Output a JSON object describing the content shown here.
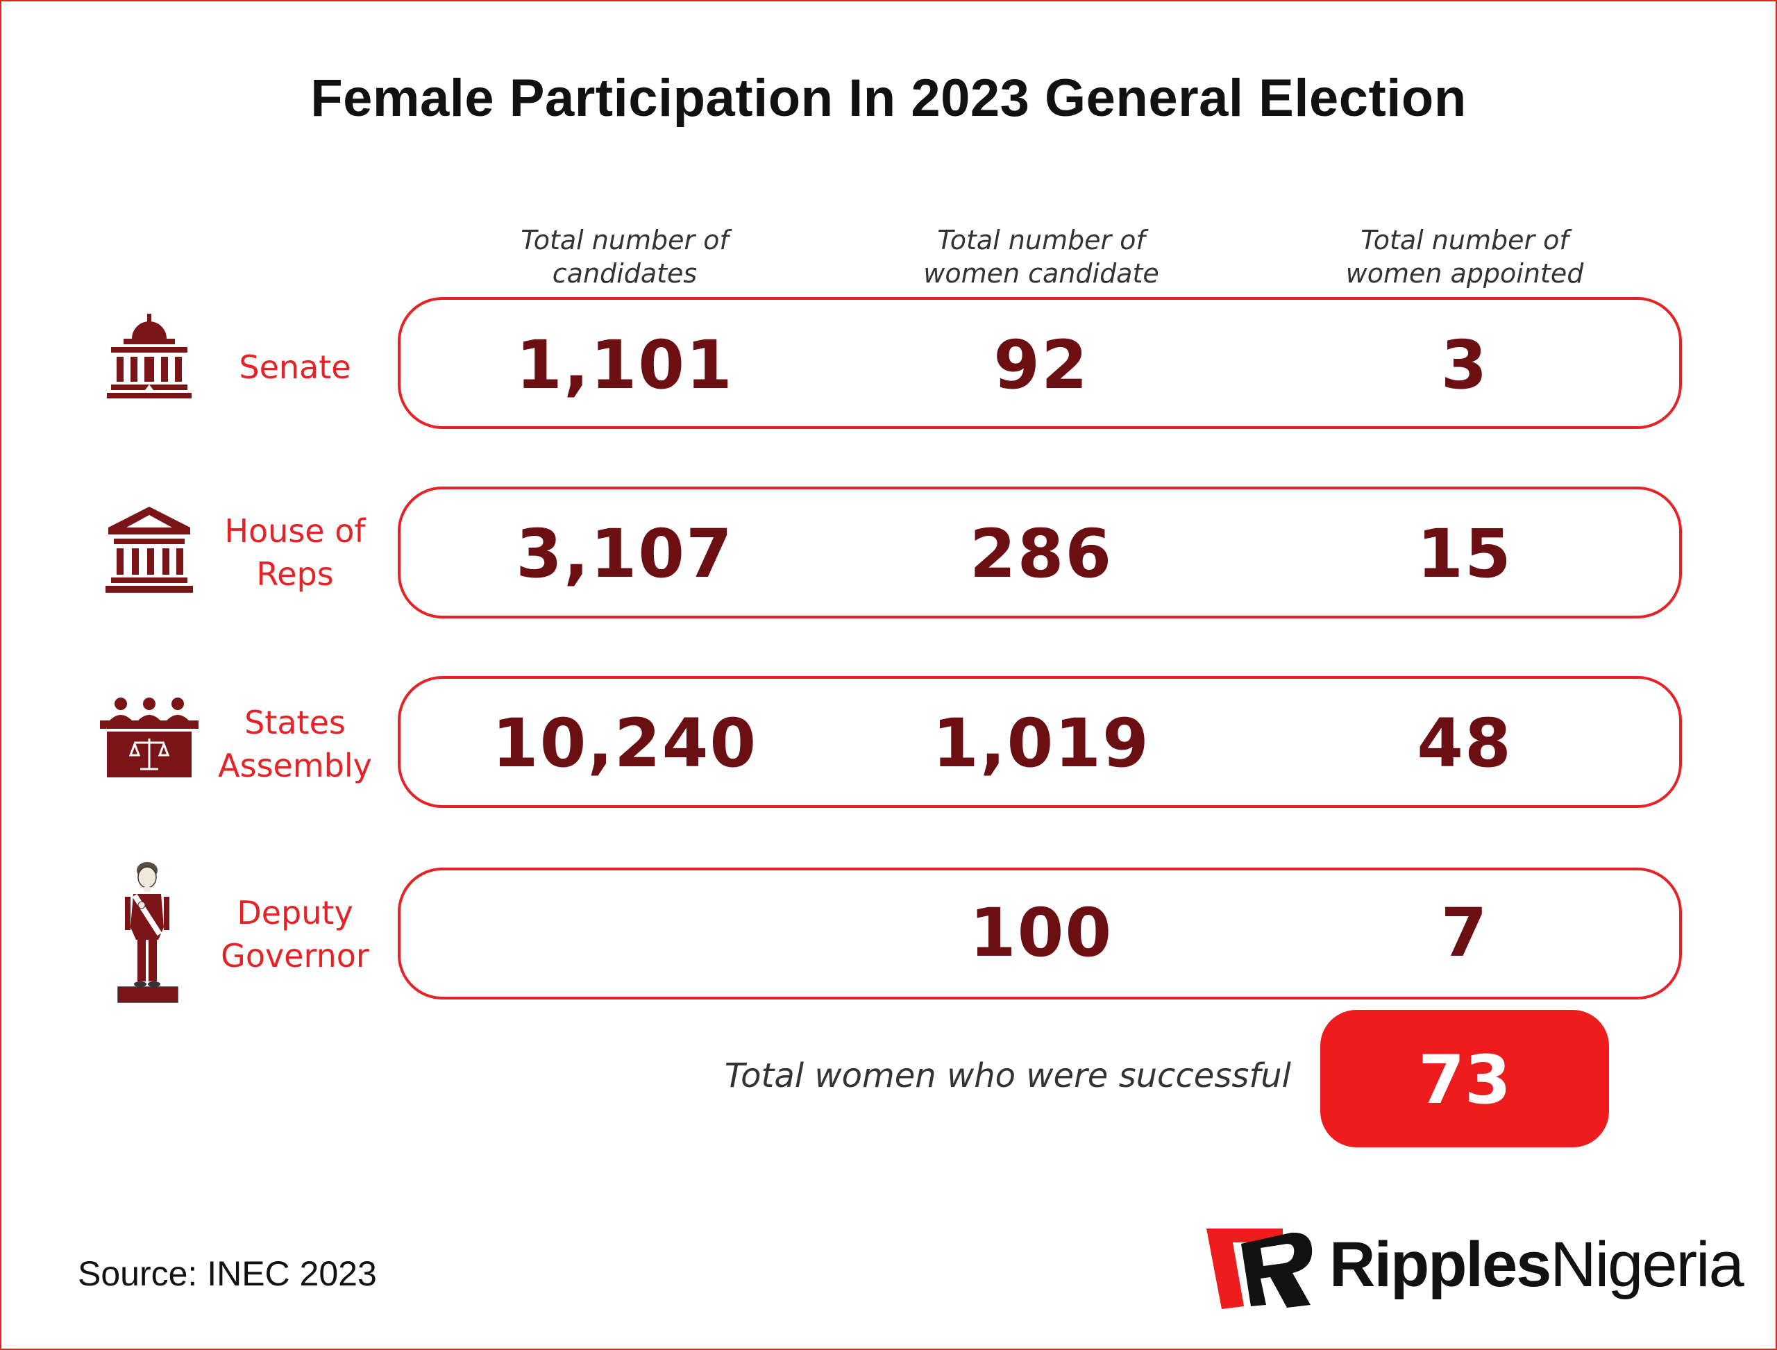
{
  "title": "Female Participation In 2023 General Election",
  "chart_data": {
    "type": "table",
    "columns": [
      {
        "line1": "Total number of",
        "line2": "candidates"
      },
      {
        "line1": "Total number of",
        "line2": "women candidate"
      },
      {
        "line1": "Total number of",
        "line2": "women appointed"
      }
    ],
    "rows": [
      {
        "line1": "Senate",
        "line2": "",
        "icon": "senate-building-icon",
        "values": [
          "1,101",
          "92",
          "3"
        ]
      },
      {
        "line1": "House of",
        "line2": "Reps",
        "icon": "house-of-reps-building-icon",
        "values": [
          "3,107",
          "286",
          "15"
        ]
      },
      {
        "line1": "States",
        "line2": "Assembly",
        "icon": "assembly-chamber-icon",
        "values": [
          "10,240",
          "1,019",
          "48"
        ]
      },
      {
        "line1": "Deputy",
        "line2": "Governor",
        "icon": "deputy-governor-figure-icon",
        "values": [
          "",
          "100",
          "7"
        ]
      }
    ],
    "total": {
      "label": "Total women who were successful",
      "value": "73"
    }
  },
  "source": "Source: INEC 2023",
  "brand": {
    "part1": "Ripples",
    "part2": "Nigeria"
  },
  "colors": {
    "accent": "#e52226",
    "value": "#6b0f12",
    "icon": "#7a1416",
    "total_box": "#ee1c1c"
  }
}
